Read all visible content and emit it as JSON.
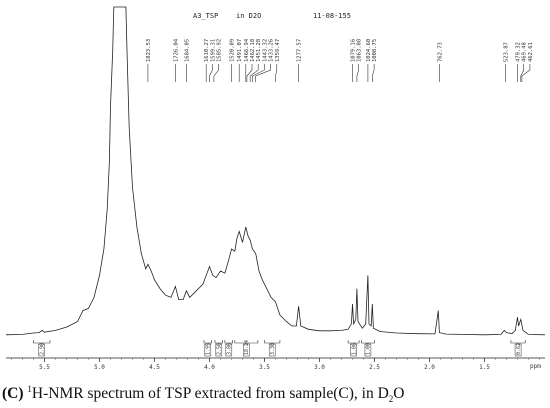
{
  "header": {
    "sample": "A3_TSP",
    "solvent": "in D2O",
    "date": "11-08-155"
  },
  "caption": {
    "letter": "(C)",
    "sup": "1",
    "text_a": "H-NMR spectrum of TSP extracted from sample(C), in D",
    "sub": "2",
    "text_b": "O"
  },
  "chart_data": {
    "type": "line",
    "title": "A3_TSP in D2O 11-08-155",
    "xlabel": "ppm",
    "ylabel": "",
    "xlim": [
      5.85,
      0.95
    ],
    "x_reversed": true,
    "x_ticks": [
      "5.5",
      "5.0",
      "4.5",
      "4.0",
      "3.5",
      "3.0",
      "2.5",
      "2.0",
      "1.5"
    ],
    "peak_labels": [
      {
        "label": "1823.53",
        "ppm": 4.56
      },
      {
        "label": "1726.04",
        "ppm": 4.31
      },
      {
        "label": "1684.05",
        "ppm": 4.21
      },
      {
        "label": "1610.27",
        "ppm": 4.03
      },
      {
        "label": "1599.31",
        "ppm": 4.0
      },
      {
        "label": "1585.92",
        "ppm": 3.96
      },
      {
        "label": "1520.09",
        "ppm": 3.8
      },
      {
        "label": "1491.07",
        "ppm": 3.73
      },
      {
        "label": "1466.94",
        "ppm": 3.67
      },
      {
        "label": "1462.18",
        "ppm": 3.66
      },
      {
        "label": "1451.28",
        "ppm": 3.63
      },
      {
        "label": "1443.32",
        "ppm": 3.61
      },
      {
        "label": "1433.26",
        "ppm": 3.58
      },
      {
        "label": "1359.47",
        "ppm": 3.4
      },
      {
        "label": "1277.57",
        "ppm": 3.19
      },
      {
        "label": "1079.16",
        "ppm": 2.7
      },
      {
        "label": "1063.08",
        "ppm": 2.66
      },
      {
        "label": "1024.60",
        "ppm": 2.56
      },
      {
        "label": "1008.75",
        "ppm": 2.52
      },
      {
        "label": "762.73",
        "ppm": 1.91
      },
      {
        "label": "523.87",
        "ppm": 1.31
      },
      {
        "label": "479.32",
        "ppm": 1.2
      },
      {
        "label": "469.48",
        "ppm": 1.17
      },
      {
        "label": "462.61",
        "ppm": 1.16
      }
    ],
    "spectrum_points": [
      [
        5.85,
        0.01
      ],
      [
        5.7,
        0.012
      ],
      [
        5.6,
        0.018
      ],
      [
        5.55,
        0.02
      ],
      [
        5.52,
        0.03
      ],
      [
        5.5,
        0.022
      ],
      [
        5.4,
        0.03
      ],
      [
        5.3,
        0.045
      ],
      [
        5.2,
        0.07
      ],
      [
        5.15,
        0.12
      ],
      [
        5.1,
        0.13
      ],
      [
        5.05,
        0.18
      ],
      [
        5.0,
        0.28
      ],
      [
        4.96,
        0.4
      ],
      [
        4.93,
        0.58
      ],
      [
        4.91,
        0.8
      ],
      [
        4.9,
        1.05
      ],
      [
        4.88,
        1.3
      ],
      [
        4.87,
        1.5
      ],
      [
        4.76,
        1.5
      ],
      [
        4.75,
        1.3
      ],
      [
        4.73,
        0.95
      ],
      [
        4.7,
        0.68
      ],
      [
        4.66,
        0.5
      ],
      [
        4.62,
        0.38
      ],
      [
        4.58,
        0.31
      ],
      [
        4.56,
        0.33
      ],
      [
        4.53,
        0.3
      ],
      [
        4.5,
        0.26
      ],
      [
        4.45,
        0.22
      ],
      [
        4.4,
        0.19
      ],
      [
        4.35,
        0.18
      ],
      [
        4.31,
        0.23
      ],
      [
        4.28,
        0.17
      ],
      [
        4.24,
        0.17
      ],
      [
        4.21,
        0.21
      ],
      [
        4.18,
        0.18
      ],
      [
        4.12,
        0.21
      ],
      [
        4.06,
        0.24
      ],
      [
        4.03,
        0.28
      ],
      [
        4.0,
        0.32
      ],
      [
        3.97,
        0.28
      ],
      [
        3.94,
        0.27
      ],
      [
        3.9,
        0.3
      ],
      [
        3.86,
        0.29
      ],
      [
        3.82,
        0.36
      ],
      [
        3.8,
        0.4
      ],
      [
        3.77,
        0.39
      ],
      [
        3.75,
        0.45
      ],
      [
        3.73,
        0.48
      ],
      [
        3.7,
        0.43
      ],
      [
        3.67,
        0.5
      ],
      [
        3.65,
        0.46
      ],
      [
        3.63,
        0.44
      ],
      [
        3.61,
        0.4
      ],
      [
        3.58,
        0.38
      ],
      [
        3.55,
        0.3
      ],
      [
        3.52,
        0.26
      ],
      [
        3.48,
        0.22
      ],
      [
        3.44,
        0.18
      ],
      [
        3.4,
        0.16
      ],
      [
        3.36,
        0.1
      ],
      [
        3.3,
        0.07
      ],
      [
        3.25,
        0.05
      ],
      [
        3.21,
        0.05
      ],
      [
        3.19,
        0.14
      ],
      [
        3.17,
        0.05
      ],
      [
        3.1,
        0.035
      ],
      [
        3.0,
        0.028
      ],
      [
        2.9,
        0.028
      ],
      [
        2.8,
        0.03
      ],
      [
        2.74,
        0.035
      ],
      [
        2.71,
        0.06
      ],
      [
        2.7,
        0.15
      ],
      [
        2.69,
        0.06
      ],
      [
        2.67,
        0.08
      ],
      [
        2.66,
        0.22
      ],
      [
        2.65,
        0.07
      ],
      [
        2.61,
        0.04
      ],
      [
        2.58,
        0.06
      ],
      [
        2.56,
        0.28
      ],
      [
        2.55,
        0.06
      ],
      [
        2.53,
        0.05
      ],
      [
        2.52,
        0.15
      ],
      [
        2.51,
        0.04
      ],
      [
        2.45,
        0.025
      ],
      [
        2.3,
        0.018
      ],
      [
        2.1,
        0.015
      ],
      [
        1.95,
        0.014
      ],
      [
        1.92,
        0.12
      ],
      [
        1.91,
        0.02
      ],
      [
        1.85,
        0.013
      ],
      [
        1.7,
        0.012
      ],
      [
        1.5,
        0.01
      ],
      [
        1.35,
        0.012
      ],
      [
        1.32,
        0.03
      ],
      [
        1.3,
        0.02
      ],
      [
        1.25,
        0.015
      ],
      [
        1.22,
        0.03
      ],
      [
        1.2,
        0.09
      ],
      [
        1.19,
        0.05
      ],
      [
        1.17,
        0.08
      ],
      [
        1.15,
        0.03
      ],
      [
        1.1,
        0.012
      ],
      [
        0.95,
        0.01
      ]
    ],
    "integrals": [
      {
        "label": "2.90",
        "from": 5.6,
        "to": 5.45
      },
      {
        "label": "1.95",
        "from": 4.05,
        "to": 3.98
      },
      {
        "label": "2.56",
        "from": 3.95,
        "to": 3.88
      },
      {
        "label": "3.86",
        "from": 3.86,
        "to": 3.79
      },
      {
        "label": "18.24",
        "from": 3.77,
        "to": 3.56
      },
      {
        "label": "3.30",
        "from": 3.5,
        "to": 3.36
      },
      {
        "label": "1.06",
        "from": 2.74,
        "to": 2.64
      },
      {
        "label": "1.00",
        "from": 2.62,
        "to": 2.5
      },
      {
        "label": "0.62",
        "from": 1.26,
        "to": 1.13
      }
    ],
    "grid": false,
    "legend": "none"
  }
}
